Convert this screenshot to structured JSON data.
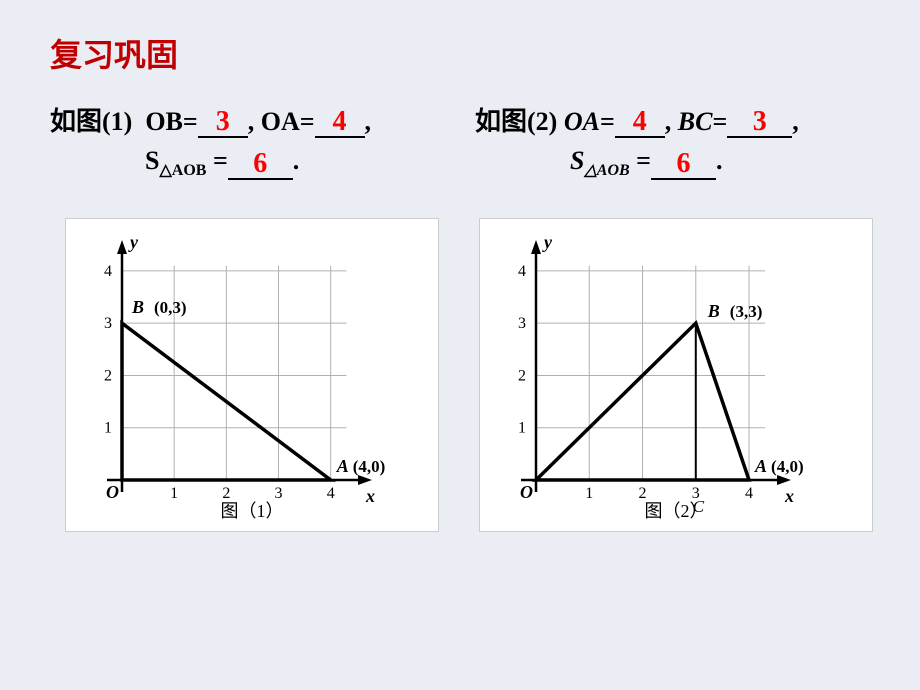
{
  "title": {
    "text": "复习巩固",
    "color": "#c00000"
  },
  "answer_color": "#ff0000",
  "text_color": "#000000",
  "problem1": {
    "prefix": "如图(1)",
    "q1_label": "OB=",
    "q1_ans": "3",
    "q2_label": "OA=",
    "q2_ans": "4",
    "q3_label_pre": "S",
    "q3_sub": "△AOB",
    "q3_eq": "=",
    "q3_ans": "6",
    "chart": {
      "caption": "图（1）",
      "x_axis": {
        "min": 0,
        "max": 4.6,
        "ticks": [
          1,
          2,
          3,
          4
        ],
        "label": "x"
      },
      "y_axis": {
        "min": 0,
        "max": 4.4,
        "ticks": [
          1,
          2,
          3,
          4
        ],
        "label": "y"
      },
      "grid_color": "#b0b0b0",
      "axis_color": "#000000",
      "line_width": 2.5,
      "points": {
        "O": {
          "x": 0,
          "y": 0,
          "label": "O"
        },
        "A": {
          "x": 4,
          "y": 0,
          "label": "A",
          "coord": "(4,0)"
        },
        "B": {
          "x": 0,
          "y": 3,
          "label": "B",
          "coord": "(0,3)"
        }
      },
      "triangle": [
        [
          0,
          0
        ],
        [
          4,
          0
        ],
        [
          0,
          3
        ]
      ]
    }
  },
  "problem2": {
    "prefix": "如图(2)",
    "q1_label_ital": "OA",
    "q1_eq": "=",
    "q1_ans": "4",
    "q2_label_ital": "BC",
    "q2_eq": "=",
    "q2_ans": "3",
    "q3_label_pre": "S",
    "q3_sub": "△AOB",
    "q3_eq": "=",
    "q3_ans": "6",
    "chart": {
      "caption": "图（2）",
      "x_axis": {
        "min": 0,
        "max": 4.6,
        "ticks": [
          1,
          2,
          3,
          4
        ],
        "label": "x"
      },
      "y_axis": {
        "min": 0,
        "max": 4.4,
        "ticks": [
          1,
          2,
          3,
          4
        ],
        "label": "y"
      },
      "grid_color": "#b0b0b0",
      "axis_color": "#000000",
      "line_width": 2.5,
      "points": {
        "O": {
          "x": 0,
          "y": 0,
          "label": "O"
        },
        "A": {
          "x": 4,
          "y": 0,
          "label": "A",
          "coord": "(4,0)"
        },
        "B": {
          "x": 3,
          "y": 3,
          "label": "B",
          "coord": "(3,3)"
        },
        "C": {
          "x": 3,
          "y": 0,
          "label": "C"
        }
      },
      "triangle": [
        [
          0,
          0
        ],
        [
          4,
          0
        ],
        [
          3,
          3
        ]
      ],
      "altitude": [
        [
          3,
          0
        ],
        [
          3,
          3
        ]
      ]
    }
  }
}
